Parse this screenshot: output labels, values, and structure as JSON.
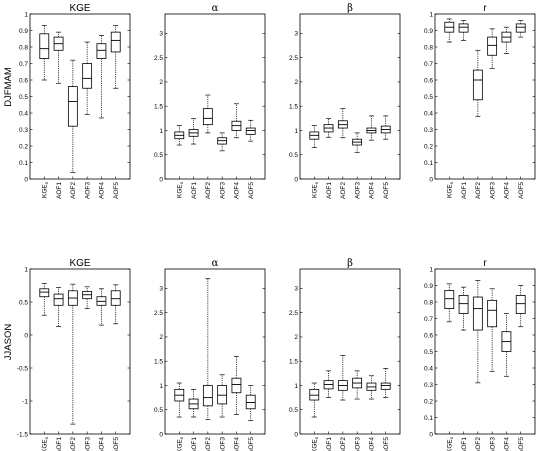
{
  "row_labels": [
    "DJFMAM",
    "JJASON"
  ],
  "chart_data": [
    {
      "type": "boxplot",
      "row": 0,
      "col": 0,
      "title": "KGE",
      "greek": false,
      "categories": [
        "KGE_s",
        "AOF1",
        "AOF2",
        "AOF3",
        "AOF4",
        "AOF5"
      ],
      "ylim": [
        0,
        1
      ],
      "yticks": [
        0,
        0.1,
        0.2,
        0.3,
        0.4,
        0.5,
        0.6,
        0.7,
        0.8,
        0.9,
        1
      ],
      "boxes": [
        {
          "min": 0.6,
          "q1": 0.73,
          "median": 0.79,
          "q3": 0.88,
          "max": 0.93
        },
        {
          "min": 0.58,
          "q1": 0.78,
          "median": 0.82,
          "q3": 0.86,
          "max": 0.89
        },
        {
          "min": 0.04,
          "q1": 0.32,
          "median": 0.47,
          "q3": 0.56,
          "max": 0.72
        },
        {
          "min": 0.39,
          "q1": 0.55,
          "median": 0.61,
          "q3": 0.7,
          "max": 0.83
        },
        {
          "min": 0.37,
          "q1": 0.73,
          "median": 0.78,
          "q3": 0.82,
          "max": 0.87
        },
        {
          "min": 0.55,
          "q1": 0.77,
          "median": 0.84,
          "q3": 0.89,
          "max": 0.93
        }
      ]
    },
    {
      "type": "boxplot",
      "row": 0,
      "col": 1,
      "title": "α",
      "greek": true,
      "categories": [
        "KGE_s",
        "AOF1",
        "AOF2",
        "AOF3",
        "AOF4",
        "AOF5"
      ],
      "ylim": [
        0,
        3.4
      ],
      "yticks": [
        0,
        0.5,
        1,
        1.5,
        2,
        2.5,
        3
      ],
      "boxes": [
        {
          "min": 0.7,
          "q1": 0.83,
          "median": 0.9,
          "q3": 0.97,
          "max": 1.1
        },
        {
          "min": 0.72,
          "q1": 0.88,
          "median": 0.95,
          "q3": 1.02,
          "max": 1.25
        },
        {
          "min": 0.95,
          "q1": 1.12,
          "median": 1.25,
          "q3": 1.45,
          "max": 1.73
        },
        {
          "min": 0.58,
          "q1": 0.72,
          "median": 0.79,
          "q3": 0.85,
          "max": 0.95
        },
        {
          "min": 0.85,
          "q1": 1.0,
          "median": 1.1,
          "q3": 1.19,
          "max": 1.55
        },
        {
          "min": 0.78,
          "q1": 0.92,
          "median": 1.0,
          "q3": 1.05,
          "max": 1.21
        }
      ]
    },
    {
      "type": "boxplot",
      "row": 0,
      "col": 2,
      "title": "β",
      "greek": true,
      "categories": [
        "KGE_s",
        "AOF1",
        "AOF2",
        "AOF3",
        "AOF4",
        "AOF5"
      ],
      "ylim": [
        0,
        3.4
      ],
      "yticks": [
        0,
        0.5,
        1,
        1.5,
        2,
        2.5,
        3
      ],
      "boxes": [
        {
          "min": 0.65,
          "q1": 0.82,
          "median": 0.9,
          "q3": 0.97,
          "max": 1.1
        },
        {
          "min": 0.86,
          "q1": 0.97,
          "median": 1.05,
          "q3": 1.12,
          "max": 1.25
        },
        {
          "min": 0.85,
          "q1": 1.05,
          "median": 1.12,
          "q3": 1.2,
          "max": 1.45
        },
        {
          "min": 0.55,
          "q1": 0.7,
          "median": 0.76,
          "q3": 0.82,
          "max": 0.95
        },
        {
          "min": 0.8,
          "q1": 0.95,
          "median": 1.0,
          "q3": 1.05,
          "max": 1.3
        },
        {
          "min": 0.82,
          "q1": 0.95,
          "median": 1.02,
          "q3": 1.09,
          "max": 1.3
        }
      ]
    },
    {
      "type": "boxplot",
      "row": 0,
      "col": 3,
      "title": "r",
      "greek": false,
      "categories": [
        "KGE_s",
        "AOF1",
        "AOF2",
        "AOF3",
        "AOF4",
        "AOF5"
      ],
      "ylim": [
        0,
        1
      ],
      "yticks": [
        0,
        0.1,
        0.2,
        0.3,
        0.4,
        0.5,
        0.6,
        0.7,
        0.8,
        0.9,
        1
      ],
      "boxes": [
        {
          "min": 0.83,
          "q1": 0.89,
          "median": 0.92,
          "q3": 0.95,
          "max": 0.97
        },
        {
          "min": 0.84,
          "q1": 0.89,
          "median": 0.92,
          "q3": 0.94,
          "max": 0.96
        },
        {
          "min": 0.38,
          "q1": 0.48,
          "median": 0.6,
          "q3": 0.66,
          "max": 0.78
        },
        {
          "min": 0.67,
          "q1": 0.75,
          "median": 0.81,
          "q3": 0.86,
          "max": 0.91
        },
        {
          "min": 0.76,
          "q1": 0.83,
          "median": 0.86,
          "q3": 0.89,
          "max": 0.92
        },
        {
          "min": 0.86,
          "q1": 0.89,
          "median": 0.92,
          "q3": 0.94,
          "max": 0.96
        }
      ]
    },
    {
      "type": "boxplot",
      "row": 1,
      "col": 0,
      "title": "KGE",
      "greek": false,
      "categories": [
        "KGE_s",
        "AOF1",
        "AOF2",
        "AOF3",
        "AOF4",
        "AOF5"
      ],
      "ylim": [
        -1.5,
        1
      ],
      "yticks": [
        -1.5,
        -1,
        -0.5,
        0,
        0.5,
        1
      ],
      "boxes": [
        {
          "min": 0.3,
          "q1": 0.58,
          "median": 0.65,
          "q3": 0.7,
          "max": 0.78
        },
        {
          "min": 0.13,
          "q1": 0.45,
          "median": 0.55,
          "q3": 0.62,
          "max": 0.72
        },
        {
          "min": -1.35,
          "q1": 0.45,
          "median": 0.56,
          "q3": 0.67,
          "max": 0.77
        },
        {
          "min": 0.4,
          "q1": 0.55,
          "median": 0.61,
          "q3": 0.66,
          "max": 0.73
        },
        {
          "min": 0.15,
          "q1": 0.45,
          "median": 0.51,
          "q3": 0.58,
          "max": 0.7
        },
        {
          "min": 0.17,
          "q1": 0.45,
          "median": 0.55,
          "q3": 0.67,
          "max": 0.76
        }
      ]
    },
    {
      "type": "boxplot",
      "row": 1,
      "col": 1,
      "title": "α",
      "greek": true,
      "categories": [
        "KGE_s",
        "AOF1",
        "AOF2",
        "AOF3",
        "AOF4",
        "AOF5"
      ],
      "ylim": [
        0,
        3.4
      ],
      "yticks": [
        0,
        0.5,
        1,
        1.5,
        2,
        2.5,
        3
      ],
      "boxes": [
        {
          "min": 0.35,
          "q1": 0.68,
          "median": 0.8,
          "q3": 0.92,
          "max": 1.05
        },
        {
          "min": 0.35,
          "q1": 0.52,
          "median": 0.62,
          "q3": 0.72,
          "max": 0.92
        },
        {
          "min": 0.3,
          "q1": 0.58,
          "median": 0.75,
          "q3": 1.0,
          "max": 3.2
        },
        {
          "min": 0.35,
          "q1": 0.62,
          "median": 0.8,
          "q3": 1.0,
          "max": 1.22
        },
        {
          "min": 0.4,
          "q1": 0.85,
          "median": 1.02,
          "q3": 1.15,
          "max": 1.6
        },
        {
          "min": 0.28,
          "q1": 0.52,
          "median": 0.65,
          "q3": 0.8,
          "max": 1.0
        }
      ]
    },
    {
      "type": "boxplot",
      "row": 1,
      "col": 2,
      "title": "β",
      "greek": true,
      "categories": [
        "KGE_s",
        "AOF1",
        "AOF2",
        "AOF3",
        "AOF4",
        "AOF5"
      ],
      "ylim": [
        0,
        3.4
      ],
      "yticks": [
        0,
        0.5,
        1,
        1.5,
        2,
        2.5,
        3
      ],
      "boxes": [
        {
          "min": 0.35,
          "q1": 0.7,
          "median": 0.8,
          "q3": 0.92,
          "max": 1.05
        },
        {
          "min": 0.75,
          "q1": 0.93,
          "median": 1.02,
          "q3": 1.1,
          "max": 1.3
        },
        {
          "min": 0.7,
          "q1": 0.9,
          "median": 1.0,
          "q3": 1.1,
          "max": 1.62
        },
        {
          "min": 0.72,
          "q1": 0.95,
          "median": 1.05,
          "q3": 1.15,
          "max": 1.3
        },
        {
          "min": 0.72,
          "q1": 0.9,
          "median": 0.97,
          "q3": 1.05,
          "max": 1.2
        },
        {
          "min": 0.75,
          "q1": 0.92,
          "median": 1.0,
          "q3": 1.05,
          "max": 1.35
        }
      ]
    },
    {
      "type": "boxplot",
      "row": 1,
      "col": 3,
      "title": "r",
      "greek": false,
      "categories": [
        "KGE_s",
        "AOF1",
        "AOF2",
        "AOF3",
        "AOF4",
        "AOF5"
      ],
      "ylim": [
        0,
        1
      ],
      "yticks": [
        0,
        0.1,
        0.2,
        0.3,
        0.4,
        0.5,
        0.6,
        0.7,
        0.8,
        0.9,
        1
      ],
      "boxes": [
        {
          "min": 0.68,
          "q1": 0.76,
          "median": 0.82,
          "q3": 0.87,
          "max": 0.91
        },
        {
          "min": 0.63,
          "q1": 0.73,
          "median": 0.79,
          "q3": 0.84,
          "max": 0.89
        },
        {
          "min": 0.31,
          "q1": 0.63,
          "median": 0.76,
          "q3": 0.83,
          "max": 0.93
        },
        {
          "min": 0.38,
          "q1": 0.65,
          "median": 0.75,
          "q3": 0.81,
          "max": 0.88
        },
        {
          "min": 0.35,
          "q1": 0.5,
          "median": 0.56,
          "q3": 0.62,
          "max": 0.73
        },
        {
          "min": 0.65,
          "q1": 0.73,
          "median": 0.79,
          "q3": 0.84,
          "max": 0.9
        }
      ]
    }
  ]
}
